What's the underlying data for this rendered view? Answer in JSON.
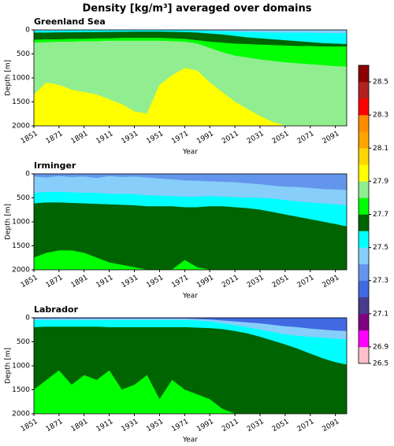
{
  "title": "Density [kg/m³] averaged over domains",
  "chart_data": [
    {
      "type": "contourf",
      "title": "Greenland Sea",
      "xlabel": "Year",
      "ylabel": "Depth [m]",
      "x": [
        1851,
        1861,
        1871,
        1881,
        1891,
        1901,
        1911,
        1921,
        1931,
        1941,
        1951,
        1961,
        1971,
        1981,
        1991,
        2001,
        2011,
        2021,
        2031,
        2041,
        2051,
        2061,
        2071,
        2081,
        2091,
        2100
      ],
      "xlim": [
        1851,
        2100
      ],
      "xticks": [
        1851,
        1871,
        1891,
        1911,
        1931,
        1951,
        1971,
        1991,
        2011,
        2031,
        2051,
        2071,
        2091
      ],
      "ylim": [
        2000,
        0
      ],
      "yticks": [
        0,
        500,
        1000,
        1500,
        2000
      ],
      "layers": [
        {
          "color": "#87cefa",
          "values": [
            0,
            0,
            0,
            0,
            0,
            0,
            0,
            0,
            0,
            0,
            0,
            0,
            0,
            0,
            0,
            0,
            0,
            0,
            0,
            0,
            0,
            0,
            0,
            0,
            0,
            0
          ]
        },
        {
          "color": "#00ffff",
          "values": [
            20,
            20,
            20,
            15,
            15,
            15,
            15,
            10,
            10,
            10,
            10,
            10,
            15,
            20,
            25,
            30,
            40,
            50,
            50,
            60,
            60,
            60,
            60,
            70,
            70,
            70
          ]
        },
        {
          "color": "#006400",
          "values": [
            60,
            60,
            55,
            55,
            50,
            50,
            45,
            45,
            40,
            40,
            40,
            45,
            50,
            60,
            80,
            100,
            130,
            160,
            180,
            200,
            220,
            240,
            260,
            280,
            290,
            300
          ]
        },
        {
          "color": "#00ff00",
          "values": [
            210,
            200,
            200,
            190,
            190,
            180,
            180,
            170,
            170,
            170,
            170,
            180,
            190,
            220,
            250,
            270,
            290,
            300,
            310,
            320,
            330,
            340,
            340,
            350,
            350,
            350
          ]
        },
        {
          "color": "#90ee90",
          "values": [
            270,
            260,
            250,
            250,
            240,
            240,
            230,
            230,
            230,
            230,
            230,
            240,
            250,
            290,
            380,
            470,
            540,
            580,
            620,
            650,
            680,
            700,
            720,
            740,
            760,
            770
          ]
        },
        {
          "color": "#ffff00",
          "values": [
            1350,
            1100,
            1150,
            1250,
            1300,
            1350,
            1450,
            1550,
            1700,
            1750,
            1150,
            950,
            800,
            850,
            1100,
            1300,
            1500,
            1650,
            1800,
            1920,
            2000,
            2000,
            2000,
            2000,
            2000,
            2000
          ]
        }
      ]
    },
    {
      "type": "contourf",
      "title": "Irminger",
      "xlabel": "Year",
      "ylabel": "Depth [m]",
      "x": [
        1851,
        1861,
        1871,
        1881,
        1891,
        1901,
        1911,
        1921,
        1931,
        1941,
        1951,
        1961,
        1971,
        1981,
        1991,
        2001,
        2011,
        2021,
        2031,
        2041,
        2051,
        2061,
        2071,
        2081,
        2091,
        2100
      ],
      "xlim": [
        1851,
        2100
      ],
      "xticks": [
        1851,
        1871,
        1891,
        1911,
        1931,
        1951,
        1971,
        1991,
        2011,
        2031,
        2051,
        2071,
        2091
      ],
      "ylim": [
        2000,
        0
      ],
      "yticks": [
        0,
        500,
        1000,
        1500,
        2000
      ],
      "layers": [
        {
          "color": "#6495ed",
          "values": [
            0,
            0,
            0,
            0,
            0,
            0,
            0,
            0,
            0,
            0,
            0,
            0,
            0,
            0,
            0,
            0,
            0,
            0,
            0,
            0,
            0,
            0,
            0,
            0,
            0,
            0
          ]
        },
        {
          "color": "#87cefa",
          "values": [
            60,
            80,
            50,
            70,
            60,
            90,
            50,
            70,
            60,
            80,
            100,
            120,
            140,
            150,
            160,
            170,
            180,
            200,
            220,
            250,
            270,
            280,
            300,
            320,
            330,
            340
          ]
        },
        {
          "color": "#00ffff",
          "values": [
            400,
            380,
            380,
            390,
            400,
            400,
            420,
            420,
            430,
            450,
            460,
            470,
            480,
            480,
            470,
            480,
            490,
            500,
            500,
            520,
            550,
            580,
            600,
            620,
            640,
            660
          ]
        },
        {
          "color": "#006400",
          "values": [
            620,
            600,
            600,
            610,
            620,
            630,
            640,
            650,
            660,
            680,
            680,
            680,
            700,
            700,
            680,
            680,
            700,
            720,
            750,
            800,
            850,
            900,
            950,
            1000,
            1050,
            1100
          ]
        },
        {
          "color": "#00ff00",
          "values": [
            1750,
            1650,
            1600,
            1600,
            1650,
            1750,
            1850,
            1900,
            1950,
            2000,
            2000,
            2000,
            1800,
            1950,
            2000,
            2000,
            2000,
            2000,
            2000,
            2000,
            2000,
            2000,
            2000,
            2000,
            2000,
            2000
          ]
        }
      ]
    },
    {
      "type": "contourf",
      "title": "Labrador",
      "xlabel": "Year",
      "ylabel": "Depth [m]",
      "x": [
        1851,
        1861,
        1871,
        1881,
        1891,
        1901,
        1911,
        1921,
        1931,
        1941,
        1951,
        1961,
        1971,
        1981,
        1991,
        2001,
        2011,
        2021,
        2031,
        2041,
        2051,
        2061,
        2071,
        2081,
        2091,
        2100
      ],
      "xlim": [
        1851,
        2100
      ],
      "xticks": [
        1851,
        1871,
        1891,
        1911,
        1931,
        1951,
        1971,
        1991,
        2011,
        2031,
        2051,
        2071,
        2091
      ],
      "ylim": [
        2000,
        0
      ],
      "yticks": [
        0,
        500,
        1000,
        1500,
        2000
      ],
      "layers": [
        {
          "color": "#4169e1",
          "values": [
            0,
            0,
            0,
            0,
            0,
            0,
            0,
            0,
            0,
            0,
            0,
            0,
            0,
            0,
            0,
            0,
            0,
            0,
            0,
            0,
            0,
            0,
            0,
            0,
            0,
            0
          ]
        },
        {
          "color": "#87cefa",
          "values": [
            20,
            20,
            20,
            20,
            20,
            20,
            20,
            20,
            20,
            20,
            20,
            20,
            20,
            30,
            40,
            60,
            80,
            100,
            120,
            150,
            180,
            200,
            230,
            250,
            270,
            280
          ]
        },
        {
          "color": "#00ffff",
          "values": [
            50,
            50,
            50,
            50,
            50,
            50,
            50,
            50,
            50,
            50,
            50,
            50,
            50,
            60,
            80,
            120,
            160,
            200,
            250,
            300,
            350,
            380,
            400,
            420,
            440,
            450
          ]
        },
        {
          "color": "#006400",
          "values": [
            200,
            190,
            190,
            190,
            190,
            190,
            200,
            200,
            200,
            200,
            200,
            200,
            200,
            210,
            220,
            240,
            280,
            330,
            400,
            480,
            560,
            650,
            750,
            850,
            930,
            980
          ]
        },
        {
          "color": "#00ff00",
          "values": [
            1500,
            1300,
            1100,
            1400,
            1200,
            1300,
            1100,
            1500,
            1400,
            1200,
            1700,
            1300,
            1500,
            1600,
            1700,
            1900,
            2000,
            2000,
            2000,
            2000,
            2000,
            2000,
            2000,
            2000,
            2000,
            2000
          ]
        }
      ]
    }
  ],
  "colorbar": {
    "levels": [
      26.5,
      26.9,
      27.0,
      27.1,
      27.2,
      27.3,
      27.4,
      27.5,
      27.6,
      27.7,
      27.8,
      27.9,
      28.0,
      28.1,
      28.2,
      28.3,
      28.4,
      28.5,
      28.6
    ],
    "colors": [
      "#ffc0cb",
      "#ff00ff",
      "#800080",
      "#483d8b",
      "#4169e1",
      "#6495ed",
      "#87cefa",
      "#00ffff",
      "#006400",
      "#00ff00",
      "#90ee90",
      "#ffff00",
      "#ffd700",
      "#ffa500",
      "#ff8c00",
      "#ff0000",
      "#b22222",
      "#8b0000"
    ],
    "ticks": [
      26.5,
      26.9,
      27.1,
      27.3,
      27.5,
      27.7,
      27.9,
      28.1,
      28.3,
      28.5
    ]
  }
}
